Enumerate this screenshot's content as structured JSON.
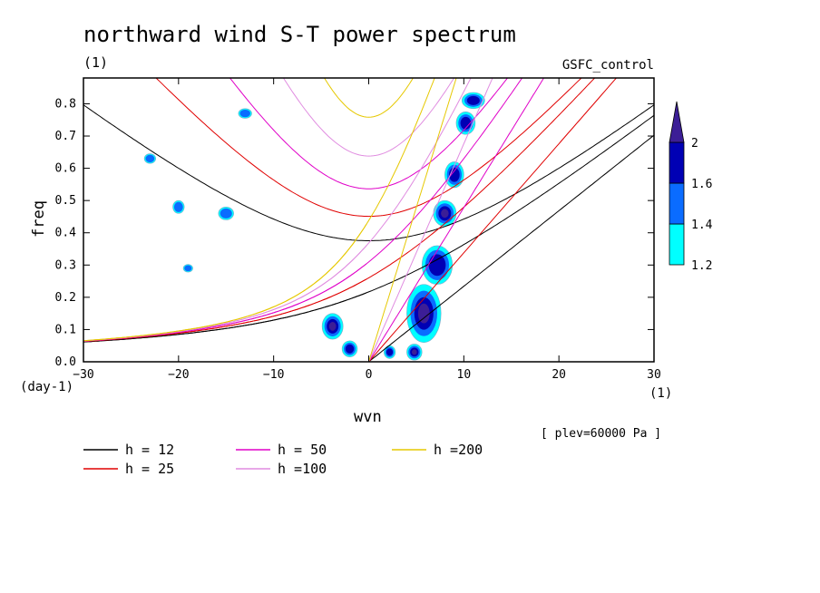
{
  "chart_data": {
    "type": "heatmap",
    "title": "northward wind S-T power spectrum",
    "subtitle_left": "(1)",
    "subtitle_right": "GSFC_control",
    "xlabel": "wvn",
    "ylabel": "freq",
    "x_unit": "(1)",
    "y_unit": "(day-1)",
    "level_note": "[ plev=60000 Pa ]",
    "xlim": [
      -30,
      30
    ],
    "ylim": [
      0,
      0.88
    ],
    "x_ticks": [
      -30,
      -20,
      -10,
      0,
      10,
      20,
      30
    ],
    "y_ticks": [
      0.0,
      0.1,
      0.2,
      0.3,
      0.4,
      0.5,
      0.6,
      0.7,
      0.8
    ],
    "x_tick_labels": [
      "−30",
      "−20",
      "−10",
      "0",
      "10",
      "20",
      "30"
    ],
    "y_tick_labels": [
      "0.0",
      "0.1",
      "0.2",
      "0.3",
      "0.4",
      "0.5",
      "0.6",
      "0.7",
      "0.8"
    ],
    "colorbar": {
      "levels": [
        1.2,
        1.4,
        1.6,
        2
      ],
      "labels": [
        "1.2",
        "1.4",
        "1.6",
        "2"
      ],
      "colors": [
        "#00ffff",
        "#0a6cff",
        "#0000b4",
        "#3c1e96"
      ]
    },
    "dispersion_curves": [
      {
        "name": "h = 12",
        "h": 12,
        "color": "#000000"
      },
      {
        "name": "h = 25",
        "h": 25,
        "color": "#e00000"
      },
      {
        "name": "h = 50",
        "h": 50,
        "color": "#e000c8"
      },
      {
        "name": "h =100",
        "h": 100,
        "color": "#e08ce0"
      },
      {
        "name": "h =200",
        "h": 200,
        "color": "#e6c800"
      }
    ],
    "power_regions": [
      {
        "x": 5.8,
        "y": 0.15,
        "rx": 1.8,
        "ry": 0.09,
        "level": 3
      },
      {
        "x": 7.2,
        "y": 0.3,
        "rx": 1.6,
        "ry": 0.06,
        "level": 2
      },
      {
        "x": 8.0,
        "y": 0.46,
        "rx": 1.2,
        "ry": 0.04,
        "level": 3
      },
      {
        "x": 9.0,
        "y": 0.58,
        "rx": 1.0,
        "ry": 0.04,
        "level": 2
      },
      {
        "x": 10.2,
        "y": 0.74,
        "rx": 1.0,
        "ry": 0.035,
        "level": 2
      },
      {
        "x": 11.0,
        "y": 0.81,
        "rx": 1.2,
        "ry": 0.025,
        "level": 2
      },
      {
        "x": -3.8,
        "y": 0.11,
        "rx": 1.1,
        "ry": 0.04,
        "level": 3
      },
      {
        "x": -2.0,
        "y": 0.04,
        "rx": 0.8,
        "ry": 0.025,
        "level": 2
      },
      {
        "x": 4.8,
        "y": 0.03,
        "rx": 0.8,
        "ry": 0.025,
        "level": 3
      },
      {
        "x": 2.2,
        "y": 0.03,
        "rx": 0.6,
        "ry": 0.02,
        "level": 2
      },
      {
        "x": -20.0,
        "y": 0.48,
        "rx": 0.6,
        "ry": 0.02,
        "level": 1
      },
      {
        "x": -23.0,
        "y": 0.63,
        "rx": 0.6,
        "ry": 0.015,
        "level": 1
      },
      {
        "x": -13.0,
        "y": 0.77,
        "rx": 0.7,
        "ry": 0.015,
        "level": 1
      },
      {
        "x": -19.0,
        "y": 0.29,
        "rx": 0.5,
        "ry": 0.012,
        "level": 1
      },
      {
        "x": -15.0,
        "y": 0.46,
        "rx": 0.8,
        "ry": 0.02,
        "level": 1
      }
    ]
  }
}
